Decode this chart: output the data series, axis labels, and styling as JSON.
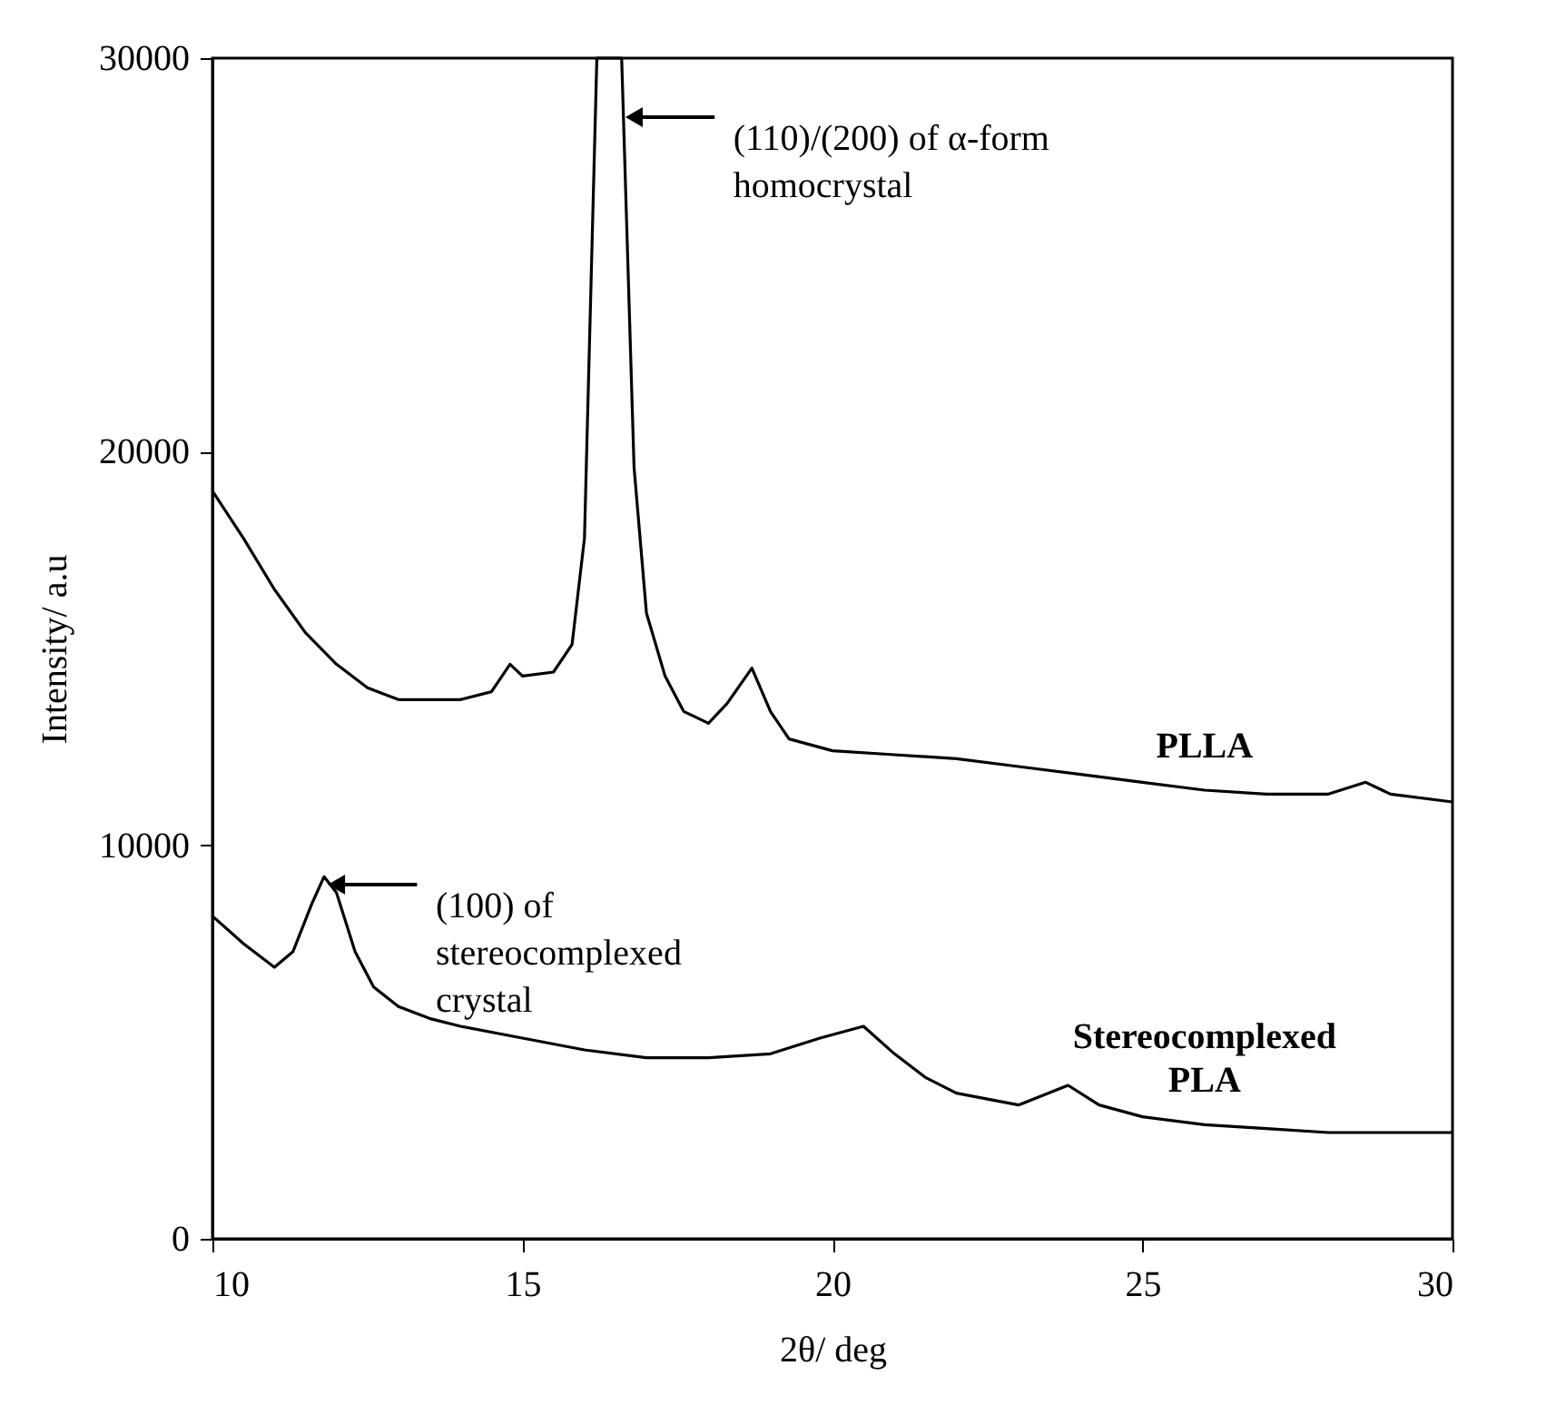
{
  "chart_data": {
    "type": "line",
    "xlabel": "2θ/ deg",
    "ylabel": "Intensity/ a.u",
    "xlim": [
      10,
      30
    ],
    "xticks": [
      10,
      15,
      20,
      25,
      30
    ],
    "ylim": [
      0,
      30000
    ],
    "yticks": [
      0,
      10000,
      20000,
      30000
    ],
    "grid": false,
    "legend": false,
    "marker": "none",
    "line_style": "solid",
    "series": [
      {
        "name": "PLLA",
        "color": "#000000",
        "x": [
          10,
          10.5,
          11,
          11.5,
          12,
          12.5,
          13,
          13.5,
          14,
          14.5,
          14.8,
          15,
          15.5,
          15.8,
          16,
          16.2,
          16.6,
          16.8,
          17,
          17.3,
          17.6,
          18,
          18.3,
          18.7,
          19,
          19.3,
          20,
          21,
          22,
          23,
          24,
          25,
          26,
          27,
          28,
          28.6,
          29,
          30
        ],
        "values": [
          19000,
          17800,
          16500,
          15400,
          14600,
          14000,
          13700,
          13700,
          13700,
          13900,
          14600,
          14300,
          14400,
          15100,
          17800,
          30000,
          30000,
          19600,
          15900,
          14300,
          13400,
          13100,
          13600,
          14500,
          13400,
          12700,
          12400,
          12300,
          12200,
          12000,
          11800,
          11600,
          11400,
          11300,
          11300,
          11600,
          11300,
          11100
        ]
      },
      {
        "name": "Stereocomplexed PLA",
        "color": "#000000",
        "x": [
          10,
          10.5,
          11,
          11.3,
          11.6,
          11.8,
          12,
          12.3,
          12.6,
          13,
          13.5,
          14,
          15,
          16,
          17,
          18,
          19,
          19.8,
          20.5,
          21,
          21.5,
          22,
          23,
          23.8,
          24.3,
          25,
          26,
          27,
          28,
          29,
          30
        ],
        "values": [
          8200,
          7500,
          6900,
          7300,
          8500,
          9200,
          8800,
          7300,
          6400,
          5900,
          5600,
          5400,
          5100,
          4800,
          4600,
          4600,
          4700,
          5100,
          5400,
          4700,
          4100,
          3700,
          3400,
          3900,
          3400,
          3100,
          2900,
          2800,
          2700,
          2700,
          2700
        ]
      }
    ],
    "annotations": [
      {
        "text": "(110)/(200) of α-form homocrystal",
        "x": 16.8,
        "y": 28500
      },
      {
        "text": "(100) of stereocomplexed crystal",
        "x": 12.0,
        "y": 9000
      }
    ]
  }
}
